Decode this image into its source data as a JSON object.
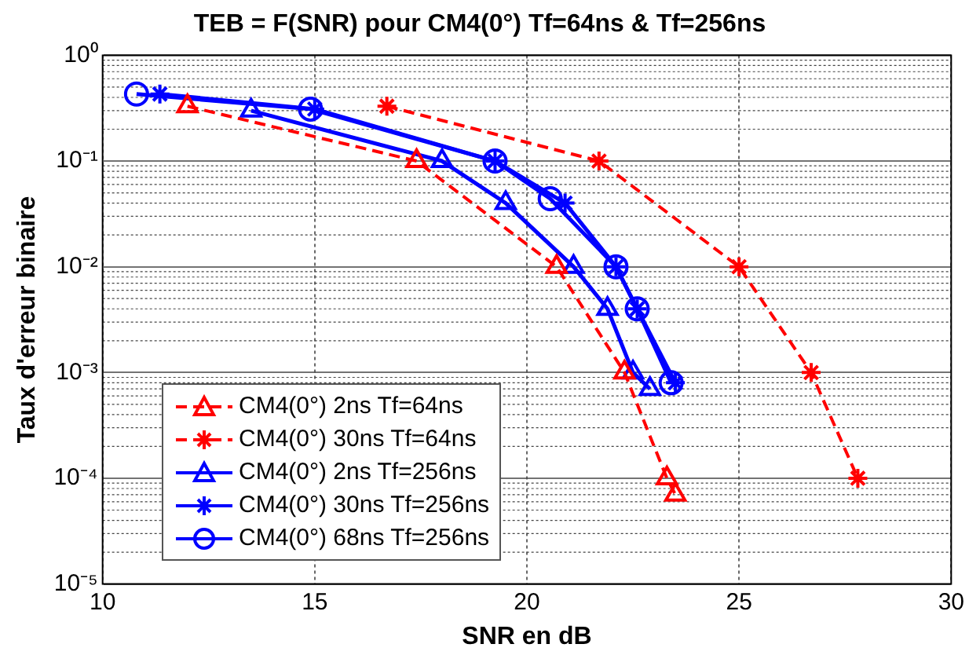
{
  "chart_data": {
    "type": "line",
    "title": "TEB = F(SNR) pour CM4(0°) Tf=64ns & Tf=256ns",
    "xlabel": "SNR en dB",
    "ylabel": "Taux d'erreur binaire",
    "log": "y",
    "grid": true,
    "legend": "bottom left",
    "xlim": [
      10,
      30
    ],
    "xticks": [
      10,
      15,
      20,
      25,
      30
    ],
    "ylim": [
      1e-05,
      1
    ],
    "yticks": [
      {
        "value": 1,
        "label": "10⁰"
      },
      {
        "value": 0.1,
        "label": "10⁻¹"
      },
      {
        "value": 0.01,
        "label": "10⁻²"
      },
      {
        "value": 0.001,
        "label": "10⁻³"
      },
      {
        "value": 0.0001,
        "label": "10⁻⁴"
      },
      {
        "value": 1e-05,
        "label": "10⁻⁵"
      }
    ],
    "series": [
      {
        "name": "CM4(0°) 2ns Tf=64ns",
        "color": "#ff0000",
        "marker": "triangle",
        "line_style": "dashed",
        "x": [
          12.0,
          17.4,
          20.7,
          22.3,
          23.3,
          23.5
        ],
        "values": [
          0.33,
          0.1,
          0.01,
          0.001,
          0.0001,
          7e-05
        ]
      },
      {
        "name": "CM4(0°) 30ns Tf=64ns",
        "color": "#ff0000",
        "marker": "cross",
        "line_style": "dashed",
        "x": [
          16.7,
          21.7,
          25.0,
          26.7,
          27.8
        ],
        "values": [
          0.33,
          0.1,
          0.01,
          0.001,
          0.0001
        ]
      },
      {
        "name": "CM4(0°) 2ns Tf=256ns",
        "color": "#0000ff",
        "marker": "triangle",
        "line_style": "solid",
        "x": [
          13.5,
          18.0,
          19.5,
          21.1,
          21.9,
          22.5,
          22.9
        ],
        "values": [
          0.3,
          0.1,
          0.04,
          0.01,
          0.004,
          0.001,
          0.0007
        ]
      },
      {
        "name": "CM4(0°) 30ns Tf=256ns",
        "color": "#0000ff",
        "marker": "cross",
        "line_style": "solid",
        "x": [
          11.35,
          15.0,
          19.25,
          20.9,
          22.1,
          22.6,
          23.5
        ],
        "values": [
          0.43,
          0.31,
          0.1,
          0.04,
          0.01,
          0.004,
          0.0008
        ]
      },
      {
        "name": "CM4(0°) 68ns Tf=256ns",
        "color": "#0000ff",
        "marker": "circle",
        "line_style": "solid",
        "x": [
          10.8,
          14.9,
          19.25,
          20.55,
          22.1,
          22.6,
          23.4
        ],
        "values": [
          0.43,
          0.31,
          0.1,
          0.044,
          0.01,
          0.004,
          0.0008
        ]
      }
    ]
  }
}
